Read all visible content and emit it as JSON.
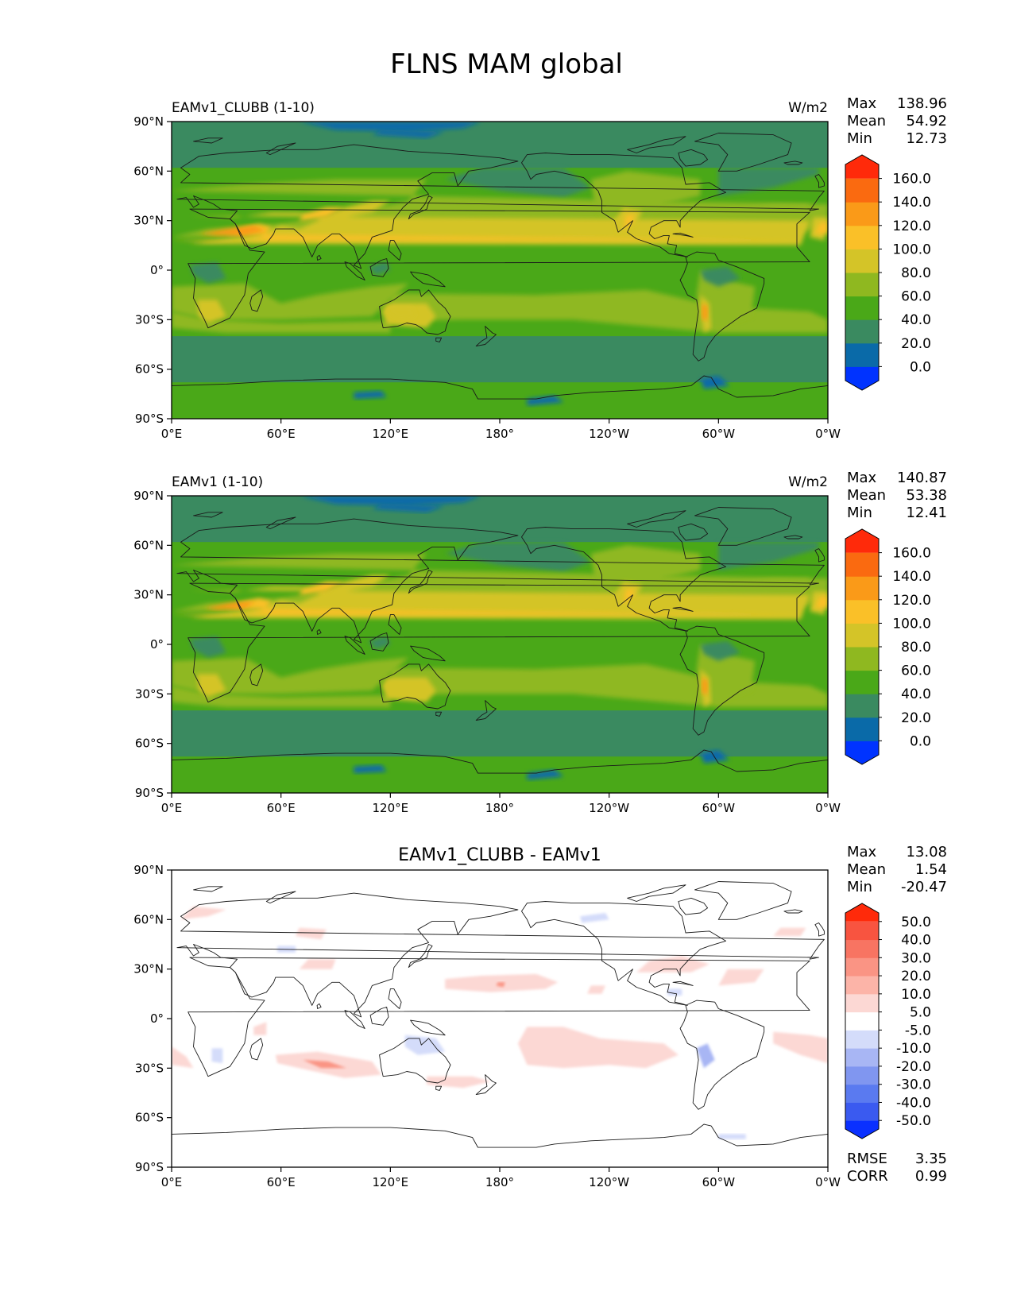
{
  "title": "FLNS MAM global",
  "lat_ticks": [
    "90°N",
    "60°N",
    "30°N",
    "0°",
    "30°S",
    "60°S",
    "90°S"
  ],
  "lon_ticks": [
    "0°E",
    "60°E",
    "120°E",
    "180°",
    "120°W",
    "60°W",
    "0°W"
  ],
  "panels": [
    {
      "id": "test",
      "left_title": "EAMv1_CLUBB (1-10)",
      "center_title": "",
      "units": "W/m2",
      "stats": [
        {
          "label": "Max",
          "value": "138.96"
        },
        {
          "label": "Mean",
          "value": "54.92"
        },
        {
          "label": "Min",
          "value": "12.73"
        }
      ],
      "colorbar": {
        "colors": [
          "#0033ff",
          "#0a6aa8",
          "#3a8a60",
          "#4aa818",
          "#8fb820",
          "#d4c428",
          "#fac028",
          "#fa9a18",
          "#fa6a10",
          "#ff2a0a"
        ],
        "tick_labels": [
          "0.0",
          "20.0",
          "40.0",
          "60.0",
          "80.0",
          "100.0",
          "120.0",
          "140.0",
          "160.0"
        ]
      },
      "extra_stats": []
    },
    {
      "id": "reference",
      "left_title": "EAMv1 (1-10)",
      "center_title": "",
      "units": "W/m2",
      "stats": [
        {
          "label": "Max",
          "value": "140.87"
        },
        {
          "label": "Mean",
          "value": "53.38"
        },
        {
          "label": "Min",
          "value": "12.41"
        }
      ],
      "colorbar": {
        "colors": [
          "#0033ff",
          "#0a6aa8",
          "#3a8a60",
          "#4aa818",
          "#8fb820",
          "#d4c428",
          "#fac028",
          "#fa9a18",
          "#fa6a10",
          "#ff2a0a"
        ],
        "tick_labels": [
          "0.0",
          "20.0",
          "40.0",
          "60.0",
          "80.0",
          "100.0",
          "120.0",
          "140.0",
          "160.0"
        ]
      },
      "extra_stats": []
    },
    {
      "id": "difference",
      "left_title": "",
      "center_title": "EAMv1_CLUBB - EAMv1",
      "units": "",
      "stats": [
        {
          "label": "Max",
          "value": "13.08"
        },
        {
          "label": "Mean",
          "value": "1.54"
        },
        {
          "label": "Min",
          "value": "-20.47"
        }
      ],
      "colorbar": {
        "colors": [
          "#0a30ff",
          "#3a5af0",
          "#5a7af0",
          "#8096f0",
          "#a8b6f4",
          "#d4dcfa",
          "#ffffff",
          "#fcd8d4",
          "#fcb4a8",
          "#fa9484",
          "#f87462",
          "#f85440",
          "#ff2a0a"
        ],
        "tick_labels": [
          "-50.0",
          "-40.0",
          "-30.0",
          "-20.0",
          "-10.0",
          "-5.0",
          "5.0",
          "10.0",
          "20.0",
          "30.0",
          "40.0",
          "50.0"
        ]
      },
      "extra_stats": [
        {
          "label": "RMSE",
          "value": "3.35"
        },
        {
          "label": "CORR",
          "value": "0.99"
        }
      ]
    }
  ],
  "colors": {
    "ocean_base": "#4aa818",
    "storm_track": "#3a8a60",
    "polar_low": "#0a6aa8",
    "subtropic": "#8fb820",
    "desert": "#d4c428",
    "desert_core": "#fac028",
    "hot_core": "#fa9a18",
    "diff_pos": "#fcd8d4",
    "diff_pos_strong": "#fa9484",
    "diff_neg": "#d4dcfa",
    "diff_neg_strong": "#a8b6f4",
    "coast": "#1a1a1a"
  }
}
